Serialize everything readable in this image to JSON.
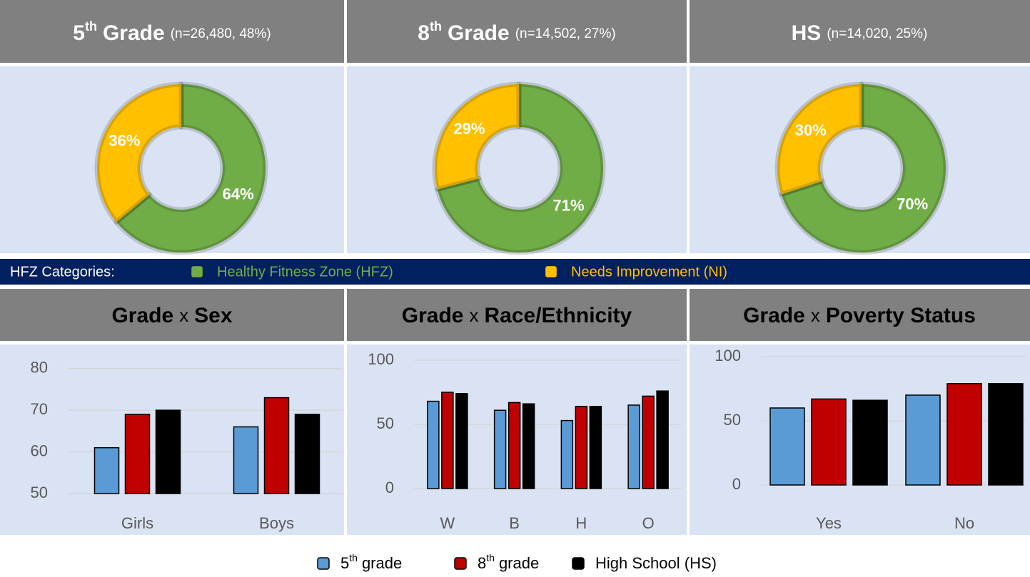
{
  "hfz_label": "HFZ Categories:",
  "legend": [
    {
      "base": "5",
      "sup": "th",
      "rest": "grade"
    },
    {
      "base": "8",
      "sup": "th",
      "rest": "grade"
    },
    {
      "base": "High School (HS)"
    }
  ],
  "chart_data": [
    {
      "type": "pie",
      "title": {
        "grade": "5",
        "sup": "th",
        "label": "Grade",
        "n": "(n=26,480, 48%)"
      },
      "categories": [
        "Healthy Fitness Zone (HFZ)",
        "Needs Improvement (NI)"
      ],
      "values": [
        64,
        36
      ],
      "value_labels": [
        "64%",
        "36%"
      ],
      "colors": [
        "#70ad47",
        "#ffc000"
      ]
    },
    {
      "type": "pie",
      "title": {
        "grade": "8",
        "sup": "th",
        "label": "Grade",
        "n": "(n=14,502, 27%)"
      },
      "categories": [
        "Healthy Fitness Zone (HFZ)",
        "Needs Improvement (NI)"
      ],
      "values": [
        71,
        29
      ],
      "value_labels": [
        "71%",
        "29%"
      ],
      "colors": [
        "#70ad47",
        "#ffc000"
      ]
    },
    {
      "type": "pie",
      "title": {
        "label": "HS",
        "n": "(n=14,020, 25%)"
      },
      "categories": [
        "Healthy Fitness Zone (HFZ)",
        "Needs Improvement (NI)"
      ],
      "values": [
        70,
        30
      ],
      "value_labels": [
        "70%",
        "30%"
      ],
      "colors": [
        "#70ad47",
        "#ffc000"
      ]
    },
    {
      "type": "bar",
      "title": {
        "a": "Grade",
        "sep": "x",
        "b": "Sex"
      },
      "categories": [
        "Girls",
        "Boys"
      ],
      "series": [
        {
          "color": "#5b9bd5",
          "values": [
            61,
            66
          ]
        },
        {
          "color": "#c00000",
          "values": [
            69,
            73
          ]
        },
        {
          "color": "#000000",
          "values": [
            70,
            69
          ]
        }
      ],
      "ylim": [
        50,
        82
      ],
      "yticks": [
        50,
        60,
        70,
        80
      ],
      "grid": true
    },
    {
      "type": "bar",
      "title": {
        "a": "Grade",
        "sep": "x",
        "b": "Race/Ethnicity"
      },
      "categories": [
        "W",
        "B",
        "H",
        "O"
      ],
      "series": [
        {
          "color": "#5b9bd5",
          "values": [
            68,
            61,
            53,
            65
          ]
        },
        {
          "color": "#c00000",
          "values": [
            75,
            67,
            64,
            72
          ]
        },
        {
          "color": "#000000",
          "values": [
            74,
            66,
            64,
            76
          ]
        }
      ],
      "ylim": [
        0,
        100
      ],
      "yticks": [
        0,
        50,
        100
      ],
      "grid": true
    },
    {
      "type": "bar",
      "title": {
        "a": "Grade",
        "sep": "x",
        "b": "Poverty Status"
      },
      "categories": [
        "Yes",
        "No"
      ],
      "series": [
        {
          "color": "#5b9bd5",
          "values": [
            60,
            70
          ]
        },
        {
          "color": "#c00000",
          "values": [
            67,
            79
          ]
        },
        {
          "color": "#000000",
          "values": [
            66,
            79
          ]
        }
      ],
      "ylim": [
        0,
        100
      ],
      "yticks": [
        0,
        50,
        100
      ],
      "grid": true
    }
  ]
}
